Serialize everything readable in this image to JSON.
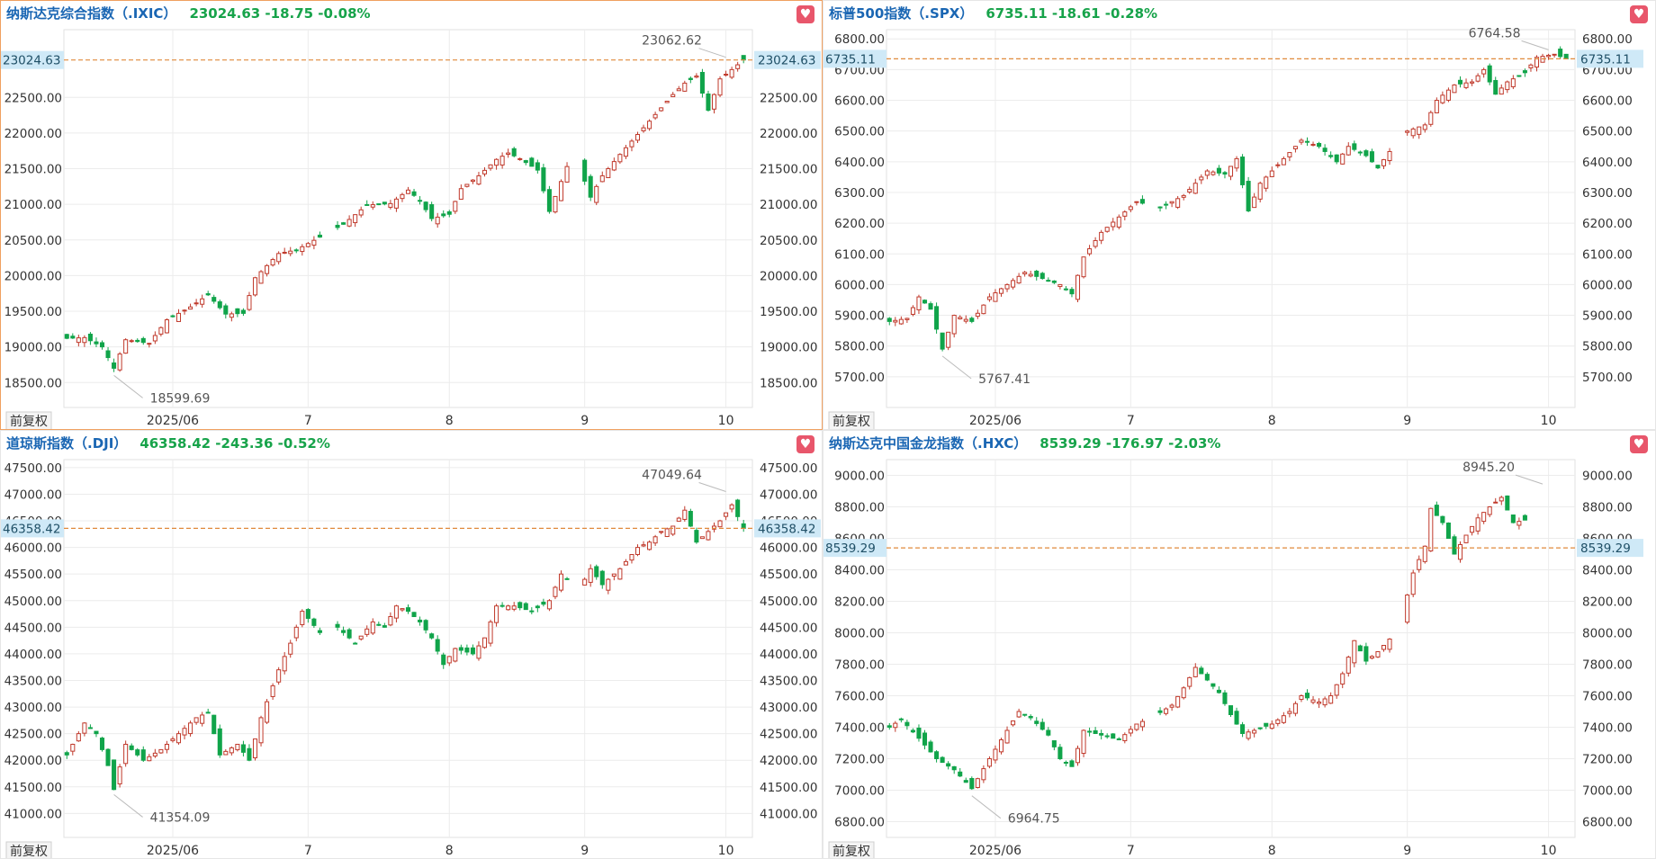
{
  "adjust_label": "前复权",
  "favorite_icon": "heart-icon",
  "colors": {
    "up": "#c0392b",
    "down": "#10a44a",
    "price_line": "#e08a3c",
    "tag_bg": "#cfe9f7",
    "grid": "#ececec"
  },
  "chart_data": [
    {
      "type": "candlestick",
      "name": "纳斯达克综合指数（.IXIC）",
      "last": "23024.63",
      "change": "-18.75",
      "pct": "-0.08%",
      "last_value": 23024.63,
      "ylim": [
        18150,
        23450
      ],
      "yticks": [
        18500,
        19000,
        19500,
        20000,
        20500,
        21000,
        21500,
        22000,
        22500
      ],
      "y_tick_labels": [
        "18500.00",
        "19000.00",
        "19500.00",
        "20000.00",
        "20500.00",
        "21000.00",
        "21500.00",
        "22000.00",
        "22500.00"
      ],
      "x_tick_labels": [
        "2025/06",
        "7",
        "8",
        "9",
        "10"
      ],
      "x_tick_index": [
        18,
        41,
        65,
        88,
        112
      ],
      "high": {
        "label": "23062.62",
        "index": 112,
        "value": 23062.62
      },
      "low": {
        "label": "18599.69",
        "index": 8,
        "value": 18599.69
      },
      "anchors": [
        [
          0,
          19120
        ],
        [
          3,
          19130
        ],
        [
          6,
          19000
        ],
        [
          8,
          18700
        ],
        [
          10,
          19100
        ],
        [
          14,
          19050
        ],
        [
          17,
          19380
        ],
        [
          21,
          19560
        ],
        [
          24,
          19730
        ],
        [
          27,
          19460
        ],
        [
          30,
          19470
        ],
        [
          32,
          19970
        ],
        [
          36,
          20310
        ],
        [
          39,
          20360
        ],
        [
          43,
          20540
        ],
        [
          47,
          20720
        ],
        [
          51,
          20990
        ],
        [
          55,
          21010
        ],
        [
          58,
          21200
        ],
        [
          60,
          21050
        ],
        [
          62,
          20800
        ],
        [
          65,
          20860
        ],
        [
          67,
          21220
        ],
        [
          70,
          21400
        ],
        [
          73,
          21630
        ],
        [
          75,
          21720
        ],
        [
          77,
          21640
        ],
        [
          80,
          21480
        ],
        [
          82,
          20900
        ],
        [
          85,
          21530
        ],
        [
          87,
          21550
        ],
        [
          89,
          21100
        ],
        [
          91,
          21400
        ],
        [
          94,
          21700
        ],
        [
          97,
          21980
        ],
        [
          100,
          22260
        ],
        [
          103,
          22540
        ],
        [
          105,
          22700
        ],
        [
          107,
          22800
        ],
        [
          109,
          22320
        ],
        [
          111,
          22760
        ],
        [
          113,
          22890
        ],
        [
          115,
          23024.63
        ]
      ]
    },
    {
      "type": "candlestick",
      "name": "标普500指数（.SPX）",
      "last": "6735.11",
      "change": "-18.61",
      "pct": "-0.28%",
      "last_value": 6735.11,
      "ylim": [
        5600,
        6830
      ],
      "yticks": [
        5700,
        5800,
        5900,
        6000,
        6100,
        6200,
        6300,
        6400,
        6500,
        6600,
        6700,
        6800
      ],
      "y_tick_labels": [
        "5700.00",
        "5800.00",
        "5900.00",
        "6000.00",
        "6100.00",
        "6200.00",
        "6300.00",
        "6400.00",
        "6500.00",
        "6600.00",
        "6700.00",
        "6800.00"
      ],
      "x_tick_labels": [
        "2025/06",
        "7",
        "8",
        "9",
        "10"
      ],
      "x_tick_index": [
        18,
        41,
        65,
        88,
        112
      ],
      "high": {
        "label": "6764.58",
        "index": 112,
        "value": 6764.58
      },
      "low": {
        "label": "5767.41",
        "index": 9,
        "value": 5767.41
      },
      "anchors": [
        [
          0,
          5880
        ],
        [
          3,
          5890
        ],
        [
          5,
          5960
        ],
        [
          7,
          5920
        ],
        [
          9,
          5790
        ],
        [
          11,
          5900
        ],
        [
          14,
          5880
        ],
        [
          17,
          5960
        ],
        [
          20,
          6000
        ],
        [
          23,
          6040
        ],
        [
          26,
          6020
        ],
        [
          29,
          6000
        ],
        [
          31,
          5970
        ],
        [
          33,
          6090
        ],
        [
          36,
          6170
        ],
        [
          39,
          6220
        ],
        [
          42,
          6270
        ],
        [
          46,
          6250
        ],
        [
          50,
          6290
        ],
        [
          54,
          6370
        ],
        [
          57,
          6360
        ],
        [
          59,
          6410
        ],
        [
          61,
          6240
        ],
        [
          63,
          6330
        ],
        [
          66,
          6390
        ],
        [
          70,
          6470
        ],
        [
          73,
          6450
        ],
        [
          76,
          6400
        ],
        [
          78,
          6450
        ],
        [
          81,
          6420
        ],
        [
          83,
          6380
        ],
        [
          86,
          6460
        ],
        [
          88,
          6500
        ],
        [
          91,
          6520
        ],
        [
          93,
          6600
        ],
        [
          96,
          6650
        ],
        [
          99,
          6660
        ],
        [
          101,
          6700
        ],
        [
          103,
          6620
        ],
        [
          105,
          6660
        ],
        [
          108,
          6690
        ],
        [
          110,
          6740
        ],
        [
          113,
          6750
        ],
        [
          115,
          6735.11
        ]
      ]
    },
    {
      "type": "candlestick",
      "name": "道琼斯指数（.DJI）",
      "last": "46358.42",
      "change": "-243.36",
      "pct": "-0.52%",
      "last_value": 46358.42,
      "ylim": [
        40550,
        47650
      ],
      "yticks": [
        41000,
        41500,
        42000,
        42500,
        43000,
        43500,
        44000,
        44500,
        45000,
        45500,
        46000,
        46500,
        47000,
        47500
      ],
      "y_tick_labels": [
        "41000.00",
        "41500.00",
        "42000.00",
        "42500.00",
        "43000.00",
        "43500.00",
        "44000.00",
        "44500.00",
        "45000.00",
        "45500.00",
        "46000.00",
        "46500.00",
        "47000.00",
        "47500.00"
      ],
      "x_tick_labels": [
        "2025/06",
        "7",
        "8",
        "9",
        "10"
      ],
      "x_tick_index": [
        18,
        41,
        65,
        88,
        112
      ],
      "high": {
        "label": "47049.64",
        "index": 112,
        "value": 47049.64
      },
      "low": {
        "label": "41354.09",
        "index": 8,
        "value": 41354.09
      },
      "anchors": [
        [
          0,
          42100
        ],
        [
          3,
          42700
        ],
        [
          5,
          42500
        ],
        [
          7,
          41900
        ],
        [
          8,
          41450
        ],
        [
          10,
          42300
        ],
        [
          13,
          42000
        ],
        [
          16,
          42200
        ],
        [
          19,
          42500
        ],
        [
          22,
          42800
        ],
        [
          24,
          42900
        ],
        [
          26,
          42100
        ],
        [
          29,
          42300
        ],
        [
          31,
          42000
        ],
        [
          33,
          42800
        ],
        [
          36,
          43700
        ],
        [
          38,
          44200
        ],
        [
          40,
          44800
        ],
        [
          43,
          44400
        ],
        [
          46,
          44500
        ],
        [
          49,
          44200
        ],
        [
          52,
          44600
        ],
        [
          54,
          44500
        ],
        [
          56,
          44900
        ],
        [
          58,
          44800
        ],
        [
          60,
          44600
        ],
        [
          62,
          44300
        ],
        [
          64,
          43800
        ],
        [
          66,
          44100
        ],
        [
          69,
          44000
        ],
        [
          71,
          44300
        ],
        [
          73,
          44900
        ],
        [
          76,
          44900
        ],
        [
          79,
          44800
        ],
        [
          82,
          45000
        ],
        [
          84,
          45500
        ],
        [
          87,
          45200
        ],
        [
          89,
          45600
        ],
        [
          91,
          45300
        ],
        [
          94,
          45600
        ],
        [
          97,
          46000
        ],
        [
          99,
          46100
        ],
        [
          101,
          46300
        ],
        [
          103,
          46400
        ],
        [
          105,
          46700
        ],
        [
          107,
          46100
        ],
        [
          109,
          46300
        ],
        [
          111,
          46500
        ],
        [
          113,
          46800
        ],
        [
          115,
          46358.42
        ]
      ]
    },
    {
      "type": "candlestick",
      "name": "纳斯达克中国金龙指数（.HXC）",
      "last": "8539.29",
      "change": "-176.97",
      "pct": "-2.03%",
      "last_value": 8539.29,
      "ylim": [
        6700,
        9100
      ],
      "yticks": [
        6800,
        7000,
        7200,
        7400,
        7600,
        7800,
        8000,
        8200,
        8400,
        8600,
        8800,
        9000
      ],
      "y_tick_labels": [
        "6800.00",
        "7000.00",
        "7200.00",
        "7400.00",
        "7600.00",
        "7800.00",
        "8000.00",
        "8200.00",
        "8400.00",
        "8600.00",
        "8800.00",
        "9000.00"
      ],
      "x_tick_labels": [
        "2025/06",
        "7",
        "8",
        "9",
        "10"
      ],
      "x_tick_index": [
        18,
        41,
        65,
        88,
        112
      ],
      "high": {
        "label": "8945.20",
        "index": 111,
        "value": 8945.2
      },
      "low": {
        "label": "6964.75",
        "index": 14,
        "value": 6964.75
      },
      "anchors": [
        [
          0,
          7400
        ],
        [
          2,
          7450
        ],
        [
          5,
          7330
        ],
        [
          8,
          7200
        ],
        [
          11,
          7130
        ],
        [
          14,
          7010
        ],
        [
          17,
          7200
        ],
        [
          20,
          7380
        ],
        [
          22,
          7500
        ],
        [
          24,
          7460
        ],
        [
          27,
          7350
        ],
        [
          29,
          7200
        ],
        [
          31,
          7150
        ],
        [
          33,
          7380
        ],
        [
          36,
          7350
        ],
        [
          39,
          7320
        ],
        [
          42,
          7420
        ],
        [
          45,
          7470
        ],
        [
          48,
          7540
        ],
        [
          50,
          7650
        ],
        [
          52,
          7780
        ],
        [
          54,
          7700
        ],
        [
          56,
          7620
        ],
        [
          58,
          7480
        ],
        [
          60,
          7360
        ],
        [
          62,
          7380
        ],
        [
          65,
          7420
        ],
        [
          68,
          7500
        ],
        [
          70,
          7600
        ],
        [
          73,
          7560
        ],
        [
          75,
          7600
        ],
        [
          77,
          7740
        ],
        [
          79,
          7950
        ],
        [
          81,
          7820
        ],
        [
          83,
          7880
        ],
        [
          85,
          7960
        ],
        [
          87,
          8100
        ],
        [
          89,
          8380
        ],
        [
          91,
          8550
        ],
        [
          92,
          8790
        ],
        [
          94,
          8700
        ],
        [
          96,
          8500
        ],
        [
          98,
          8620
        ],
        [
          100,
          8730
        ],
        [
          102,
          8800
        ],
        [
          104,
          8860
        ],
        [
          106,
          8700
        ],
        [
          108,
          8716
        ]
      ]
    }
  ]
}
